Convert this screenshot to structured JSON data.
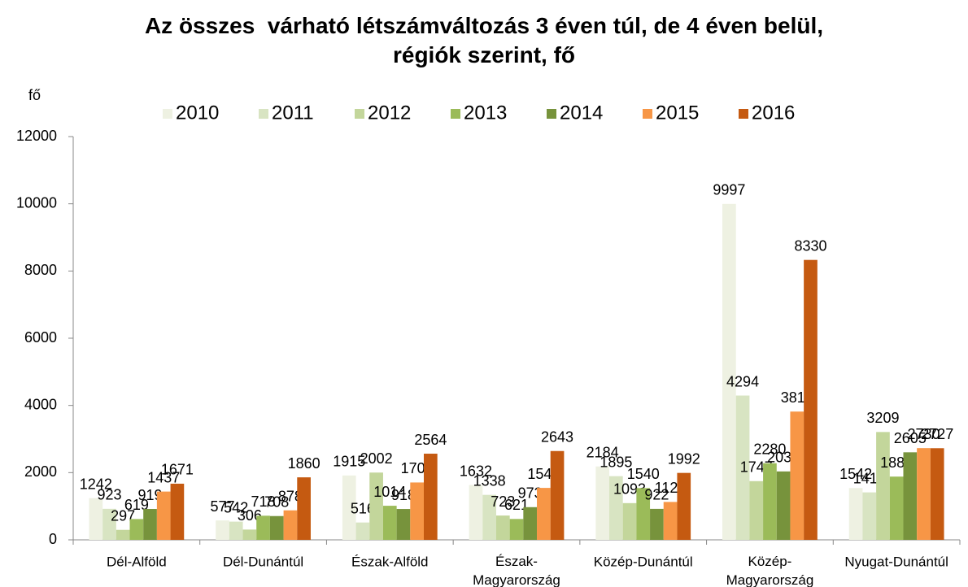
{
  "chart_data": {
    "type": "bar",
    "title": "Az összes  várható létszámváltozás 3 éven túl, de 4 éven belül, régiók szerint, fő",
    "y_label": "fő",
    "categories": [
      "Dél-Alföld",
      "Dél-Dunántúl",
      "Észak-Alföld",
      "Észak-Magyarország",
      "Közép-Dunántúl",
      "Közép-Magyarország",
      "Nyugat-Dunántúl"
    ],
    "series": [
      {
        "name": "2010",
        "color": "#eef1e2",
        "values": [
          1242,
          577,
          1915,
          1632,
          2184,
          9997,
          1542
        ]
      },
      {
        "name": "2011",
        "color": "#d8e4c2",
        "values": [
          923,
          542,
          516,
          1338,
          1895,
          4294,
          1412
        ]
      },
      {
        "name": "2012",
        "color": "#c3d69b",
        "values": [
          297,
          306,
          2002,
          723,
          1093,
          1747,
          3209
        ]
      },
      {
        "name": "2013",
        "color": "#9bbb59",
        "values": [
          619,
          718,
          1014,
          621,
          1540,
          2280,
          1882
        ]
      },
      {
        "name": "2014",
        "color": "#77933c",
        "values": [
          919,
          708,
          918,
          973,
          922,
          2036,
          2605
        ]
      },
      {
        "name": "2015",
        "color": "#f79646",
        "values": [
          1437,
          878,
          1707,
          1546,
          1128,
          3817,
          2730
        ]
      },
      {
        "name": "2016",
        "color": "#c55a11",
        "values": [
          1671,
          1860,
          2564,
          2643,
          1992,
          8330,
          2727
        ]
      }
    ],
    "ylim": [
      0,
      12000
    ],
    "yticks": [
      0,
      2000,
      4000,
      6000,
      8000,
      10000,
      12000
    ],
    "grid": false,
    "legend": "top"
  }
}
